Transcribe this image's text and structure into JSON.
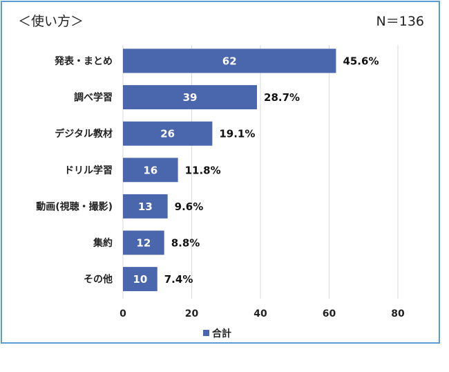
{
  "chart_data": {
    "type": "bar",
    "orientation": "horizontal",
    "title": "＜使い方＞",
    "note": "N＝136",
    "categories": [
      "発表・まとめ",
      "調べ学習",
      "デジタル教材",
      "ドリル学習",
      "動画(視聴・撮影)",
      "集約",
      "その他"
    ],
    "series": [
      {
        "name": "合計",
        "values": [
          62,
          39,
          26,
          16,
          13,
          12,
          10
        ],
        "color": "#4a66ad"
      }
    ],
    "percent_labels": [
      "45.6%",
      "28.7%",
      "19.1%",
      "11.8%",
      "9.6%",
      "8.8%",
      "7.4%"
    ],
    "xlim": [
      0,
      80
    ],
    "xticks": [
      0,
      20,
      40,
      60,
      80
    ],
    "grid": true,
    "legend": "bottom"
  }
}
